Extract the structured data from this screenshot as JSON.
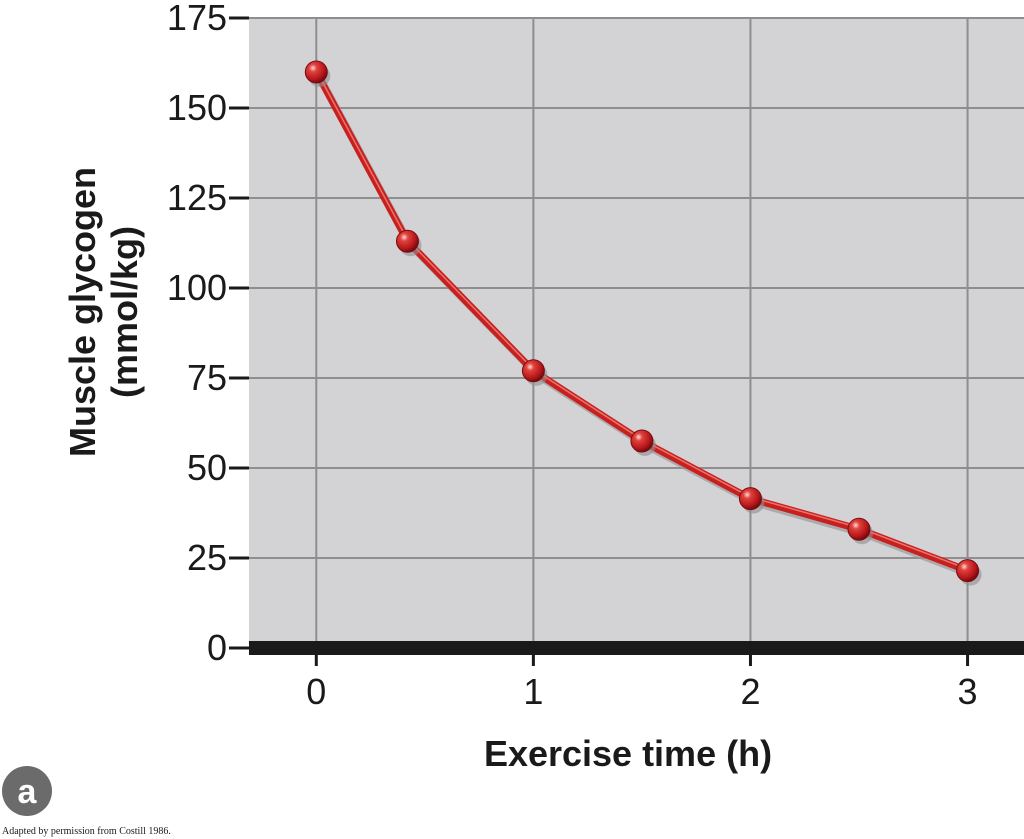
{
  "panel_label": "a",
  "credit": "Adapted by permission from Costill 1986.",
  "colors": {
    "plot_bg": "#d3d3d5",
    "grid": "#8e8e90",
    "axis": "#1a1a1a",
    "line": "#c8201e",
    "marker": "#b3151a",
    "badge": "#6b6b6b"
  },
  "chart_data": {
    "type": "line",
    "title": "",
    "xlabel": "Exercise time (h)",
    "ylabel_lines": [
      "Muscle glycogen",
      "(mmol/kg)"
    ],
    "xlim": [
      -0.31,
      3.26
    ],
    "ylim": [
      0,
      175
    ],
    "x_ticks": [
      0,
      1,
      2,
      3
    ],
    "y_ticks": [
      0,
      25,
      50,
      75,
      100,
      125,
      150,
      175
    ],
    "grid": true,
    "series": [
      {
        "x": [
          0,
          0.42,
          1,
          1.5,
          2,
          2.5,
          3
        ],
        "y": [
          160,
          113,
          77,
          57.5,
          41.5,
          33,
          21.5
        ]
      }
    ]
  }
}
